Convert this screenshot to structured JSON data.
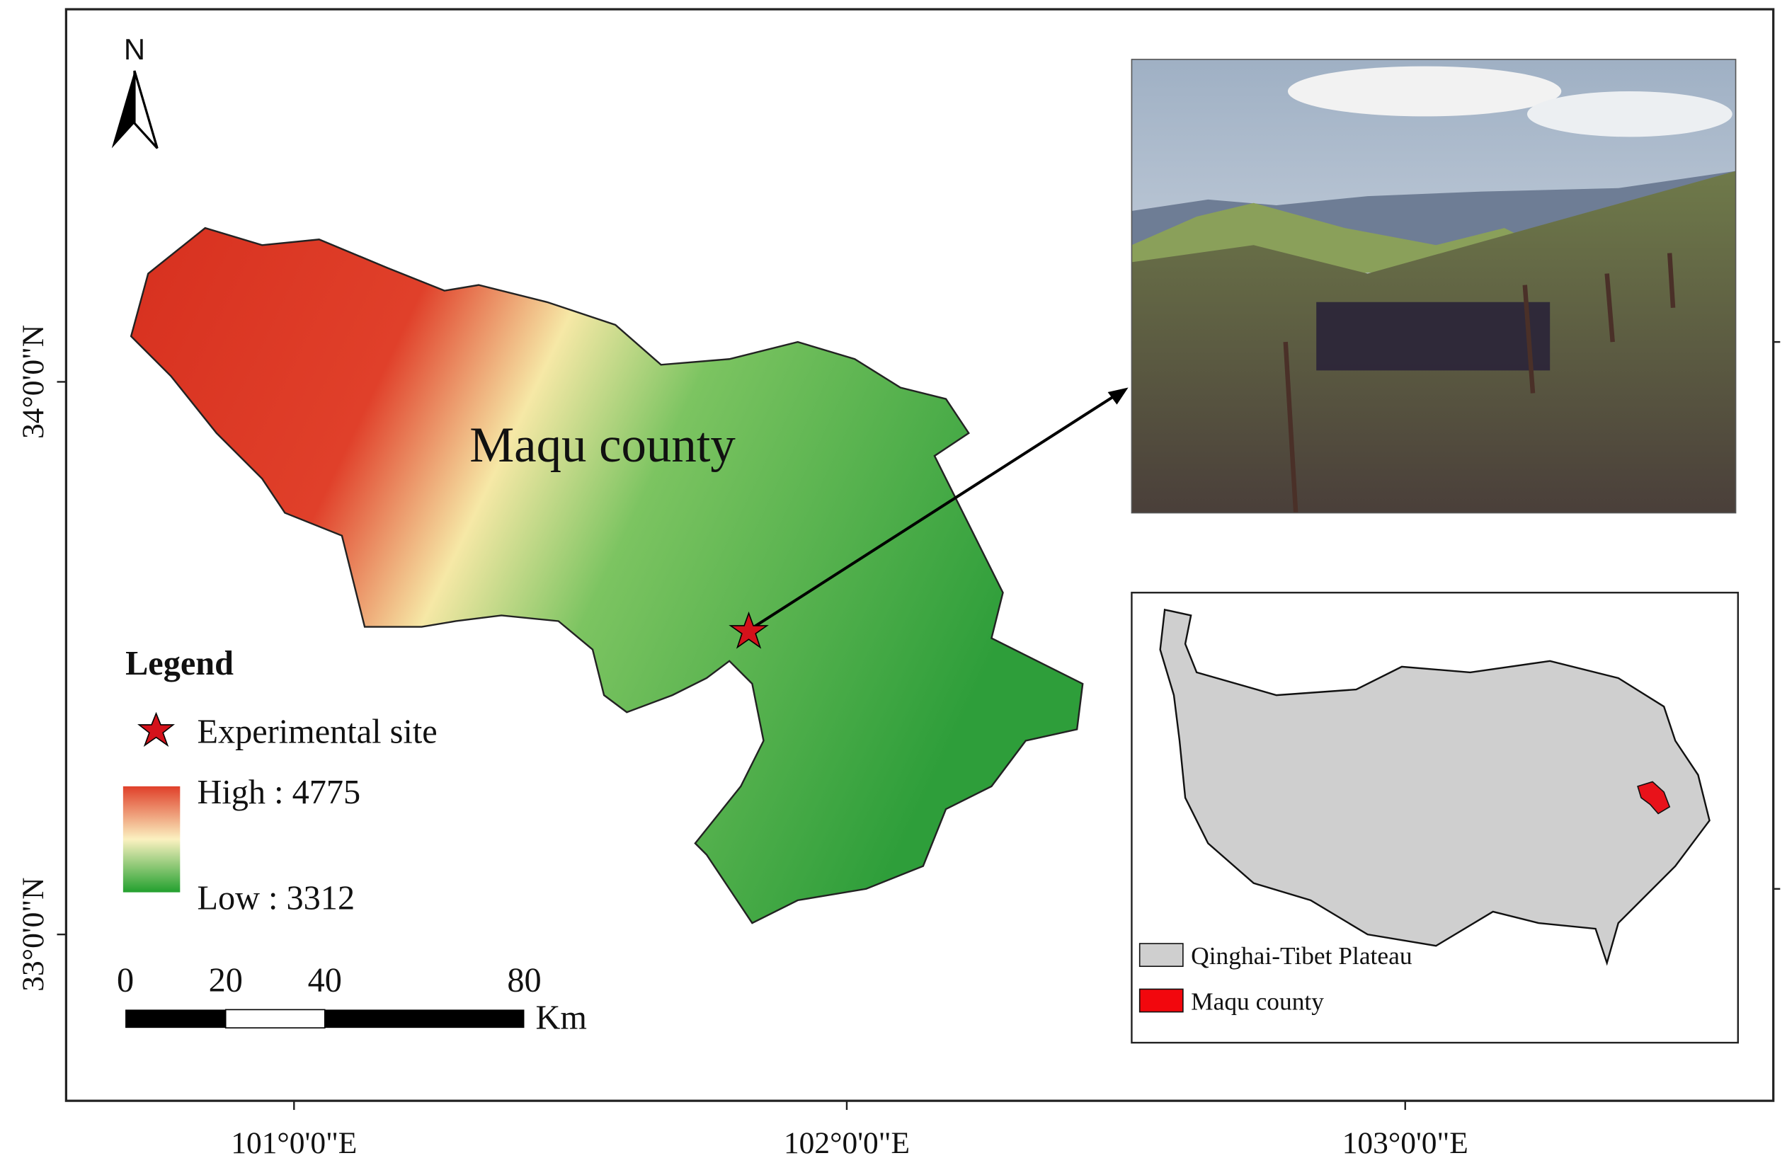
{
  "map": {
    "north": "N",
    "label": "Maqu county"
  },
  "axes": {
    "x_labels": [
      "101°0'0\"E",
      "102°0'0\"E",
      "103°0'0\"E"
    ],
    "y_labels": [
      "34°0'0\"N",
      "33°0'0\"N"
    ]
  },
  "legend": {
    "title": "Legend",
    "site": "Experimental site",
    "high": "High : 4775",
    "low": "Low : 3312"
  },
  "scale_bar": {
    "ticks": [
      "0",
      "20",
      "40",
      "80"
    ],
    "unit": "Km"
  },
  "inset": {
    "legend": [
      "Qinghai-Tibet Plateau",
      "Maqu county"
    ]
  }
}
